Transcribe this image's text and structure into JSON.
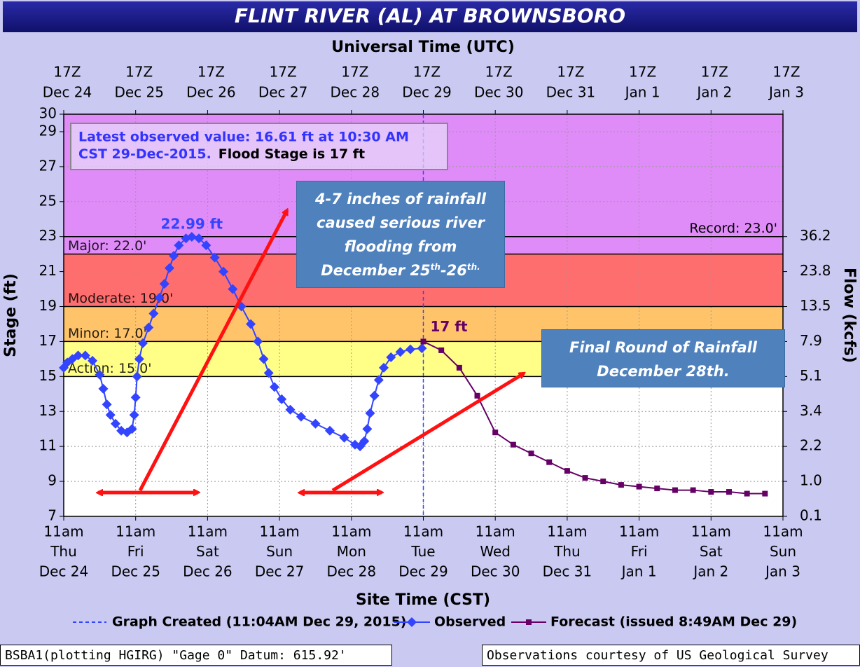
{
  "chart_data": {
    "type": "line",
    "title": "FLINT RIVER (AL) AT BROWNSBORO",
    "top_axis_label": "Universal Time (UTC)",
    "xlabel": "Site Time (CST)",
    "ylabel": "Stage (ft)",
    "y2label": "Flow (kcfs)",
    "xlim": [
      0,
      10
    ],
    "xticks": [
      0,
      1,
      2,
      3,
      4,
      5,
      6,
      7,
      8,
      9,
      10
    ],
    "xtick_labels": [
      [
        "11am",
        "Thu",
        "Dec 24"
      ],
      [
        "11am",
        "Fri",
        "Dec 25"
      ],
      [
        "11am",
        "Sat",
        "Dec 26"
      ],
      [
        "11am",
        "Sun",
        "Dec 27"
      ],
      [
        "11am",
        "Mon",
        "Dec 28"
      ],
      [
        "11am",
        "Tue",
        "Dec 29"
      ],
      [
        "11am",
        "Wed",
        "Dec 30"
      ],
      [
        "11am",
        "Thu",
        "Dec 31"
      ],
      [
        "11am",
        "Fri",
        "Jan 1"
      ],
      [
        "11am",
        "Sat",
        "Jan 2"
      ],
      [
        "11am",
        "Sun",
        "Jan 3"
      ]
    ],
    "top_xtick_labels": [
      [
        "17Z",
        "Dec 24"
      ],
      [
        "17Z",
        "Dec 25"
      ],
      [
        "17Z",
        "Dec 26"
      ],
      [
        "17Z",
        "Dec 27"
      ],
      [
        "17Z",
        "Dec 28"
      ],
      [
        "17Z",
        "Dec 29"
      ],
      [
        "17Z",
        "Dec 30"
      ],
      [
        "17Z",
        "Dec 31"
      ],
      [
        "17Z",
        "Jan 1"
      ],
      [
        "17Z",
        "Jan 2"
      ],
      [
        "17Z",
        "Jan 3"
      ]
    ],
    "ylim": [
      7,
      30
    ],
    "yticks": [
      7,
      9,
      11,
      13,
      15,
      17,
      19,
      21,
      23,
      25,
      27,
      29,
      30
    ],
    "y2ticks": [
      {
        "value": 36.2,
        "label": "36.2",
        "stage": 23
      },
      {
        "value": 23.8,
        "label": "23.8",
        "stage": 21
      },
      {
        "value": 13.5,
        "label": "13.5",
        "stage": 19
      },
      {
        "value": 7.9,
        "label": "7.9",
        "stage": 17
      },
      {
        "value": 5.1,
        "label": "5.1",
        "stage": 15
      },
      {
        "value": 3.4,
        "label": "3.4",
        "stage": 13
      },
      {
        "value": 2.2,
        "label": "2.2",
        "stage": 11
      },
      {
        "value": 1.0,
        "label": "1.0",
        "stage": 9
      },
      {
        "value": 0.1,
        "label": "0.1",
        "stage": 7
      }
    ],
    "grid": true,
    "flood_categories": [
      {
        "label": "Action: 15.0'",
        "stage": 15,
        "color": "#ffff88"
      },
      {
        "label": "Minor: 17.0'",
        "stage": 17,
        "color": "#ffc46a"
      },
      {
        "label": "Moderate: 19.0'",
        "stage": 19,
        "color": "#ff6e6e"
      },
      {
        "label": "Major: 22.0'",
        "stage": 22,
        "color": "#e08cf8"
      }
    ],
    "record": {
      "label": "Record: 23.0'",
      "stage": 23
    },
    "series": [
      {
        "name": "Observed",
        "color": "#3344ff",
        "marker": "diamond",
        "peak_label": "22.99 ft",
        "x": [
          0,
          0.05,
          0.12,
          0.2,
          0.3,
          0.4,
          0.5,
          0.55,
          0.6,
          0.65,
          0.72,
          0.8,
          0.88,
          0.95,
          0.98,
          1.0,
          1.02,
          1.05,
          1.1,
          1.18,
          1.25,
          1.33,
          1.4,
          1.47,
          1.53,
          1.6,
          1.7,
          1.78,
          1.88,
          1.98,
          2.1,
          2.22,
          2.35,
          2.47,
          2.6,
          2.7,
          2.78,
          2.85,
          2.93,
          3.03,
          3.15,
          3.3,
          3.5,
          3.7,
          3.9,
          4.05,
          4.12,
          4.18,
          4.22,
          4.26,
          4.32,
          4.38,
          4.45,
          4.55,
          4.68,
          4.82,
          4.98
        ],
        "values": [
          15.5,
          15.8,
          16.0,
          16.2,
          16.2,
          15.9,
          15.1,
          14.3,
          13.4,
          12.8,
          12.3,
          11.9,
          11.8,
          12.0,
          12.8,
          13.8,
          15.0,
          16.0,
          16.9,
          17.8,
          18.6,
          19.5,
          20.3,
          21.2,
          21.9,
          22.5,
          22.9,
          22.99,
          22.9,
          22.5,
          21.8,
          21.0,
          20.0,
          19.0,
          18.0,
          17.0,
          16.0,
          15.2,
          14.4,
          13.7,
          13.1,
          12.7,
          12.3,
          11.9,
          11.5,
          11.1,
          11.0,
          11.3,
          12.0,
          12.9,
          13.9,
          14.8,
          15.5,
          16.1,
          16.4,
          16.55,
          16.61
        ]
      },
      {
        "name": "Forecast (issued 8:49AM Dec 29)",
        "color": "#660066",
        "marker": "square",
        "start_label": "17 ft",
        "x": [
          5,
          5.25,
          5.5,
          5.75,
          6,
          6.25,
          6.5,
          6.75,
          7,
          7.25,
          7.5,
          7.75,
          8,
          8.25,
          8.5,
          8.75,
          9,
          9.25,
          9.5,
          9.75
        ],
        "values": [
          17,
          16.5,
          15.5,
          13.9,
          11.8,
          11.1,
          10.6,
          10.1,
          9.6,
          9.2,
          9.0,
          8.8,
          8.7,
          8.6,
          8.5,
          8.5,
          8.4,
          8.4,
          8.3,
          8.3
        ]
      }
    ],
    "graph_created": {
      "name": "Graph Created (11:04AM Dec 29, 2015)",
      "x": 5.0,
      "color": "#3344ff"
    },
    "info_box": [
      "Latest observed value: 16.61 ft at 10:30 AM",
      "CST 29-Dec-2015.",
      "Flood Stage is 17 ft"
    ],
    "callouts": [
      {
        "lines": [
          "4-7 inches of rainfall",
          "caused serious river",
          "flooding  from"
        ],
        "last": [
          "December 25",
          "th",
          "-26",
          "th."
        ]
      },
      {
        "lines": [
          "Final Round of Rainfall",
          "December 28th."
        ]
      }
    ],
    "footer_left": "BSBA1(plotting HGIRG) \"Gage 0\" Datum: 615.92'",
    "footer_right": "Observations courtesy of US Geological Survey"
  }
}
